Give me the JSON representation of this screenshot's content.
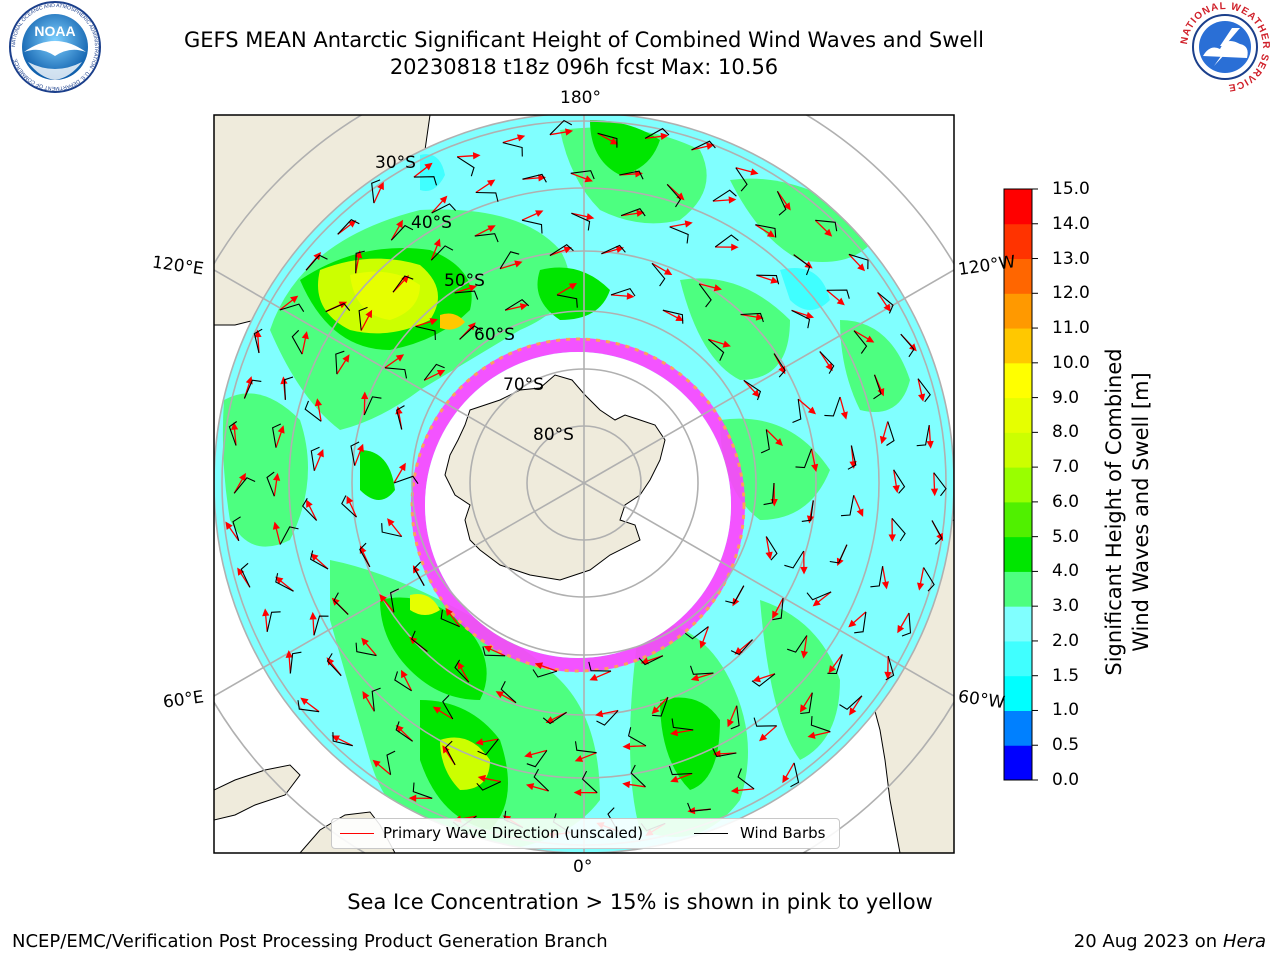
{
  "title_line1": "GEFS MEAN Antarctic Significant Height of Combined Wind Waves and Swell",
  "title_line2": "20230818 t18z 096h fcst   Max: 10.56",
  "logos": {
    "left": "NOAA",
    "left_ring_text": "NATIONAL OCEANIC AND ATMOSPHERIC ADMINISTRATION · U.S. DEPARTMENT OF COMMERCE",
    "right_ring_text": "NATIONAL WEATHER SERVICE"
  },
  "map": {
    "projection": "south-polar-stereographic",
    "lon_labels": {
      "top": "180°",
      "bottom": "0°",
      "upper_left": "120°E",
      "lower_left": "60°E",
      "upper_right": "120°W",
      "lower_right": "60°W"
    },
    "lat_labels": [
      "30°S",
      "40°S",
      "50°S",
      "60°S",
      "70°S",
      "80°S"
    ],
    "colors": {
      "land": "#efebdc",
      "ocean_low": "#80ffff",
      "ocean_mid": "#4dff80",
      "ocean_high": "#00e600",
      "storm": "#e6ff00",
      "sea_ice": "#ff40ff",
      "wave_arrow": "#ff0000",
      "wind_barb": "#000000"
    }
  },
  "legend": {
    "wave": "Primary Wave Direction (unscaled)",
    "wind": "Wind Barbs"
  },
  "colorbar": {
    "label_line1": "Significant Height of Combined",
    "label_line2": "Wind Waves and Swell [m]",
    "ticks": [
      "0.0",
      "0.5",
      "1.0",
      "1.5",
      "2.0",
      "3.0",
      "4.0",
      "5.0",
      "6.0",
      "7.0",
      "8.0",
      "9.0",
      "10.0",
      "11.0",
      "12.0",
      "13.0",
      "14.0",
      "15.0"
    ],
    "colors": [
      "#0000ff",
      "#0080ff",
      "#00ffff",
      "#40ffff",
      "#80ffff",
      "#4dff80",
      "#00e600",
      "#50f000",
      "#99ff00",
      "#ccff00",
      "#e6ff00",
      "#ffff00",
      "#ffc800",
      "#ff9900",
      "#ff6600",
      "#ff3300",
      "#ff0000"
    ]
  },
  "caption": "Sea Ice Concentration > 15% is shown in pink to yellow",
  "footer": {
    "left": "NCEP/EMC/Verification Post Processing Product Generation Branch",
    "date": "20 Aug 2023 on",
    "host": "Hera"
  }
}
